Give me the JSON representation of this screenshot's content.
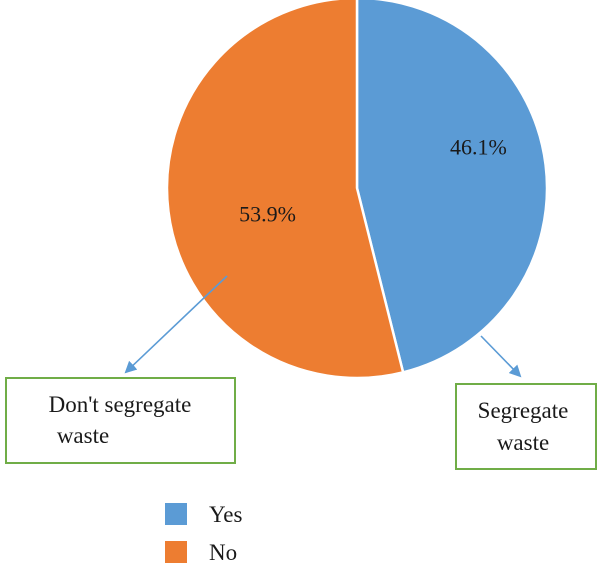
{
  "chart_data": {
    "type": "pie",
    "title": "",
    "categories": [
      "Yes",
      "No"
    ],
    "values": [
      46.1,
      53.9
    ],
    "data_labels": [
      "46.1%",
      "53.9%"
    ],
    "colors": [
      "#5b9bd5",
      "#ed7d31"
    ],
    "legend": {
      "placement": "bottom-left",
      "entries": [
        "Yes",
        "No"
      ]
    },
    "annotations": [
      {
        "text_lines": [
          "Don't segregate",
          "waste"
        ],
        "points_to": "No"
      },
      {
        "text_lines": [
          "Segregate",
          "waste"
        ],
        "points_to": "Yes"
      }
    ],
    "callout_box_color": "#70ad47",
    "arrow_color": "#5b9bd5"
  }
}
